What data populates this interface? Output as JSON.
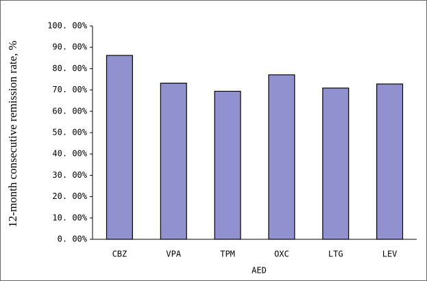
{
  "chart_data": {
    "type": "bar",
    "ylabel": "12-month consecutive remission rate, %",
    "xlabel": "AED",
    "categories": [
      "CBZ",
      "VPA",
      "TPM",
      "OXC",
      "LTG",
      "LEV"
    ],
    "values": [
      86.2,
      73.2,
      69.4,
      77.1,
      70.9,
      72.8
    ],
    "color": "#9191cf",
    "ylim": [
      0,
      100
    ],
    "yticks": [
      {
        "value": 0,
        "label": "0. 00%"
      },
      {
        "value": 10,
        "label": "10. 00%"
      },
      {
        "value": 20,
        "label": "20. 00%"
      },
      {
        "value": 30,
        "label": "30. 00%"
      },
      {
        "value": 40,
        "label": "40. 00%"
      },
      {
        "value": 50,
        "label": "50. 00%"
      },
      {
        "value": 60,
        "label": "60. 00%"
      },
      {
        "value": 70,
        "label": "70. 00%"
      },
      {
        "value": 80,
        "label": "80. 00%"
      },
      {
        "value": 90,
        "label": "90. 00%"
      },
      {
        "value": 100,
        "label": "100. 00%"
      }
    ],
    "grid": false
  }
}
